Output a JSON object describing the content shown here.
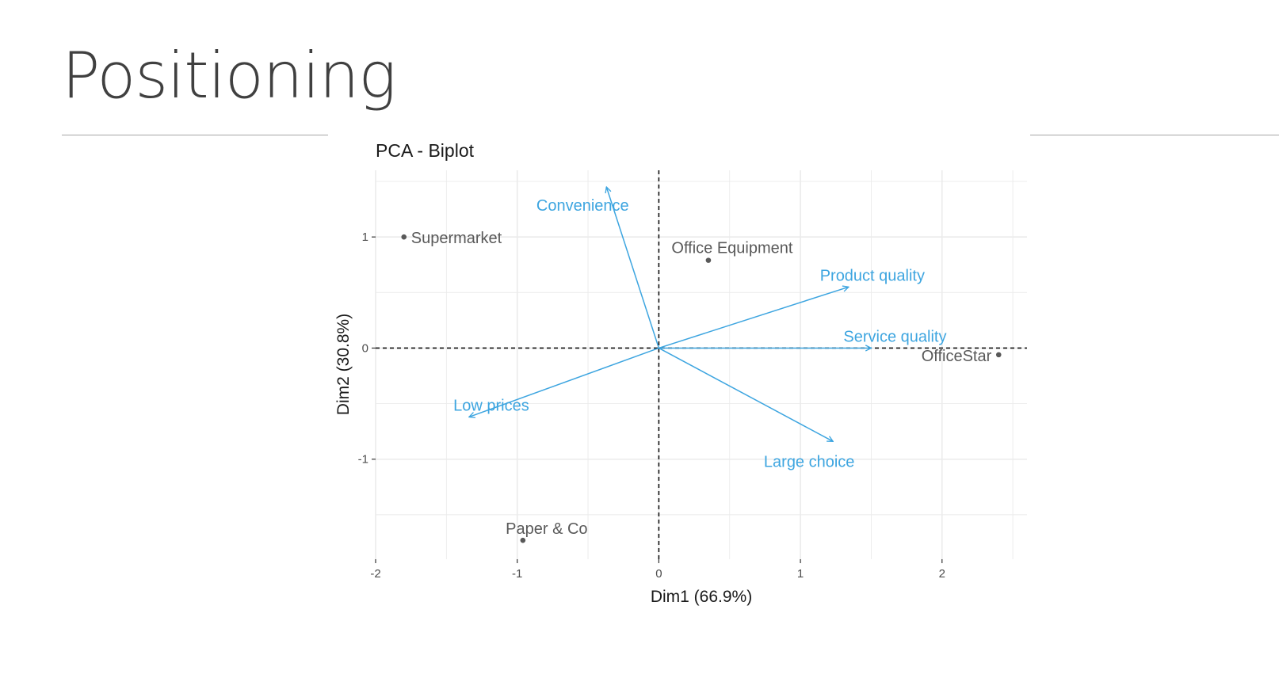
{
  "slide": {
    "title": "Positioning"
  },
  "chart_data": {
    "type": "scatter",
    "title": "PCA - Biplot",
    "xlabel": "Dim1 (66.9%)",
    "ylabel": "Dim2 (30.8%)",
    "xlim": [
      -2.0,
      2.6
    ],
    "ylim": [
      -1.9,
      1.6
    ],
    "xticks": [
      -2,
      -1,
      0,
      1,
      2
    ],
    "yticks": [
      -1,
      0,
      1
    ],
    "grid": true,
    "points": [
      {
        "label": "Supermarket",
        "x": -1.8,
        "y": 1.0
      },
      {
        "label": "Office Equipment",
        "x": 0.35,
        "y": 0.79
      },
      {
        "label": "OfficeStar",
        "x": 2.4,
        "y": -0.06
      },
      {
        "label": "Paper & Co",
        "x": -0.96,
        "y": -1.73
      }
    ],
    "vectors": [
      {
        "label": "Convenience",
        "x": -0.37,
        "y": 1.45
      },
      {
        "label": "Product quality",
        "x": 1.34,
        "y": 0.55
      },
      {
        "label": "Service quality",
        "x": 1.5,
        "y": 0.0
      },
      {
        "label": "Low prices",
        "x": -1.34,
        "y": -0.62
      },
      {
        "label": "Large choice",
        "x": 1.23,
        "y": -0.84
      }
    ],
    "colors": {
      "points": "#595959",
      "vectors": "#3da5e0",
      "grid": "#ebebeb",
      "axes_text": "#4d4d4d"
    }
  }
}
